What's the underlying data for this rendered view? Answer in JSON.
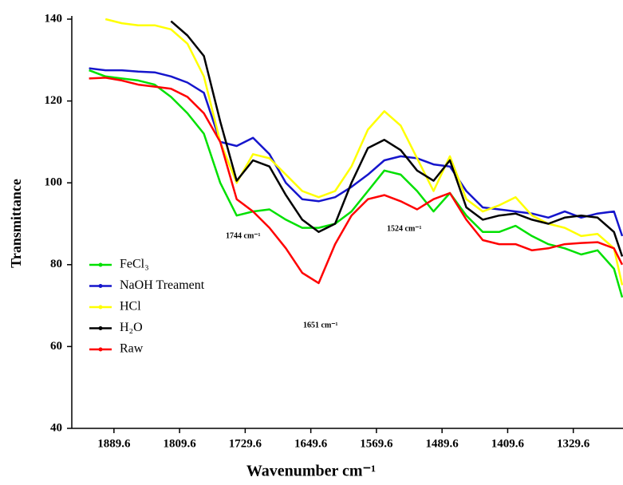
{
  "chart_data": {
    "type": "line",
    "x_label": "Wavenumber cm⁻¹",
    "y_label": "Transmittance",
    "x": [
      1920,
      1900,
      1880,
      1860,
      1840,
      1820,
      1800,
      1780,
      1760,
      1740,
      1720,
      1700,
      1680,
      1660,
      1640,
      1620,
      1600,
      1580,
      1560,
      1540,
      1520,
      1500,
      1480,
      1460,
      1440,
      1420,
      1400,
      1380,
      1360,
      1340,
      1320,
      1300,
      1280,
      1270
    ],
    "xlim": [
      1941,
      1269
    ],
    "xticks": [
      1889.6,
      1809.6,
      1729.6,
      1649.6,
      1569.6,
      1489.6,
      1409.6,
      1329.6
    ],
    "ylim": [
      40,
      140
    ],
    "yticks": [
      40,
      60,
      80,
      100,
      120,
      140
    ],
    "legend": "lower-left",
    "series": [
      {
        "name": "FeCl₃",
        "color": "#00e000",
        "values": [
          127.5,
          126,
          125.5,
          125,
          124,
          121,
          117,
          112,
          100,
          92,
          93,
          93.5,
          91,
          89,
          89,
          90,
          93,
          98,
          103,
          102,
          98,
          93,
          97.5,
          92,
          88,
          88,
          89.5,
          87,
          85,
          84,
          82.5,
          83.5,
          79,
          72
        ]
      },
      {
        "name": "NaOH Treament",
        "color": "#1515cc",
        "values": [
          128,
          127.5,
          127.5,
          127.2,
          127,
          126,
          124.5,
          122,
          110,
          109,
          111,
          107,
          100,
          96,
          95.5,
          96.5,
          99,
          102,
          105.5,
          106.5,
          106,
          104.5,
          104,
          98,
          94,
          93.5,
          93,
          92.5,
          91.5,
          93,
          91.5,
          92.5,
          93,
          87
        ]
      },
      {
        "name": "HCl",
        "color": "#ffff00",
        "values": [
          null,
          140,
          139,
          138.5,
          138.5,
          137.5,
          134,
          126,
          110,
          100,
          107,
          106,
          102,
          98,
          96.5,
          98,
          104,
          113,
          117.5,
          114,
          106,
          98,
          106.5,
          96,
          93,
          94.5,
          96.5,
          92,
          90,
          89,
          87,
          87.5,
          84,
          75
        ]
      },
      {
        "name": "H₂O",
        "color": "#000000",
        "values": [
          null,
          null,
          null,
          null,
          null,
          139.5,
          136,
          131,
          115,
          100.5,
          105.5,
          104,
          97,
          91,
          88,
          90,
          100,
          108.5,
          110.5,
          108,
          103,
          100.5,
          105.5,
          94,
          91,
          92,
          92.5,
          91,
          90,
          91.5,
          92,
          91.5,
          88,
          82
        ]
      },
      {
        "name": "Raw",
        "color": "#ff0000",
        "values": [
          125.5,
          125.7,
          125,
          124,
          123.5,
          123,
          121,
          117,
          110,
          96,
          93,
          89,
          84,
          78,
          75.5,
          85,
          92,
          96,
          97,
          95.5,
          93.5,
          96,
          97.5,
          91,
          86,
          85,
          85,
          83.5,
          84,
          85,
          85.3,
          85.5,
          84,
          80
        ]
      }
    ],
    "annotations": [
      "1744 cm⁻¹",
      "1651 cm⁻¹",
      "1524 cm⁻¹"
    ]
  }
}
